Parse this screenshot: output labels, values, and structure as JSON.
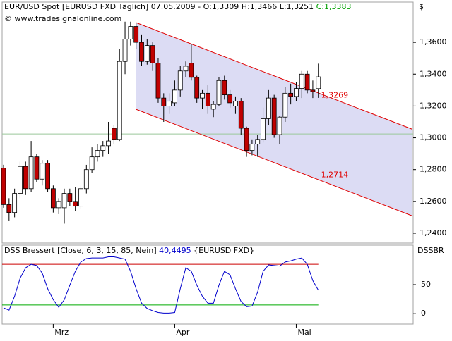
{
  "chart_data": [
    {
      "type": "candlestick",
      "title": "EUR/USD Spot [EURUSD FXD  Täglich] 07.05.2009 - O:1,3309 H:1,3466 L:1,3251",
      "title_close": "C:1,3383",
      "watermark": "© www.tradesignalonline.com",
      "axis_label": "$",
      "categories": [
        null,
        null,
        null,
        null,
        null,
        null,
        null,
        null,
        null,
        "Mrz",
        null,
        null,
        null,
        null,
        null,
        null,
        null,
        null,
        null,
        null,
        null,
        null,
        null,
        null,
        null,
        null,
        null,
        null,
        null,
        null,
        null,
        "Apr",
        null,
        null,
        null,
        null,
        null,
        null,
        null,
        null,
        null,
        null,
        null,
        null,
        null,
        null,
        null,
        null,
        null,
        null,
        null,
        null,
        null,
        "Mai",
        null,
        null,
        null,
        null
      ],
      "open": [
        1.281,
        1.258,
        1.253,
        1.265,
        1.282,
        1.268,
        1.288,
        1.274,
        1.284,
        1.268,
        1.256,
        1.256,
        1.265,
        1.26,
        1.257,
        1.268,
        1.28,
        1.288,
        1.292,
        1.295,
        1.306,
        1.299,
        1.348,
        1.362,
        1.37,
        1.36,
        1.348,
        1.358,
        1.347,
        1.325,
        1.32,
        1.322,
        1.33,
        1.342,
        1.347,
        1.338,
        1.325,
        1.328,
        1.318,
        1.321,
        1.336,
        1.327,
        1.32,
        1.323,
        1.306,
        1.292,
        1.296,
        1.299,
        1.312,
        1.325,
        1.302,
        1.313,
        1.328,
        1.326,
        1.331,
        1.34,
        1.33,
        1.3309
      ],
      "high": [
        1.283,
        1.262,
        1.268,
        1.285,
        1.285,
        1.298,
        1.29,
        1.286,
        1.286,
        1.27,
        1.262,
        1.268,
        1.268,
        1.269,
        1.27,
        1.283,
        1.294,
        1.296,
        1.298,
        1.31,
        1.308,
        1.356,
        1.373,
        1.373,
        1.372,
        1.365,
        1.362,
        1.36,
        1.35,
        1.328,
        1.328,
        1.336,
        1.345,
        1.348,
        1.359,
        1.339,
        1.33,
        1.333,
        1.323,
        1.338,
        1.339,
        1.33,
        1.326,
        1.325,
        1.307,
        1.299,
        1.302,
        1.319,
        1.33,
        1.327,
        1.314,
        1.332,
        1.334,
        1.335,
        1.342,
        1.342,
        1.336,
        1.3466
      ],
      "low": [
        1.256,
        1.248,
        1.25,
        1.262,
        1.264,
        1.266,
        1.272,
        1.27,
        1.266,
        1.253,
        1.252,
        1.246,
        1.257,
        1.254,
        1.255,
        1.265,
        1.278,
        1.285,
        1.288,
        1.29,
        1.296,
        1.298,
        1.34,
        1.358,
        1.356,
        1.345,
        1.346,
        1.342,
        1.322,
        1.31,
        1.315,
        1.32,
        1.326,
        1.338,
        1.336,
        1.322,
        1.318,
        1.315,
        1.313,
        1.32,
        1.324,
        1.319,
        1.315,
        1.302,
        1.288,
        1.289,
        1.288,
        1.297,
        1.308,
        1.3,
        1.296,
        1.31,
        1.321,
        1.323,
        1.325,
        1.328,
        1.325,
        1.3251
      ],
      "close": [
        1.258,
        1.253,
        1.265,
        1.282,
        1.268,
        1.288,
        1.274,
        1.284,
        1.268,
        1.256,
        1.26,
        1.265,
        1.26,
        1.257,
        1.268,
        1.28,
        1.288,
        1.292,
        1.295,
        1.298,
        1.299,
        1.348,
        1.362,
        1.37,
        1.36,
        1.348,
        1.358,
        1.347,
        1.325,
        1.32,
        1.323,
        1.33,
        1.342,
        1.345,
        1.338,
        1.325,
        1.328,
        1.32,
        1.321,
        1.336,
        1.327,
        1.322,
        1.323,
        1.306,
        1.292,
        1.296,
        1.299,
        1.312,
        1.325,
        1.302,
        1.313,
        1.328,
        1.326,
        1.331,
        1.34,
        1.33,
        1.329,
        1.3383
      ],
      "up_color": "#ffffff",
      "down_color": "#c00000",
      "ylim": [
        1.2338,
        1.3853
      ],
      "yticks": [
        {
          "value": 1.24,
          "label": "1,2400"
        },
        {
          "value": 1.26,
          "label": "1,2600"
        },
        {
          "value": 1.28,
          "label": "1,2800"
        },
        {
          "value": 1.3,
          "label": "1,3000"
        },
        {
          "value": 1.32,
          "label": "1,3200"
        },
        {
          "value": 1.34,
          "label": "1,3400"
        },
        {
          "value": 1.36,
          "label": "1,3600"
        }
      ],
      "channel": {
        "x": [
          24,
          74
        ],
        "upper": [
          1.3724,
          1.3054
        ],
        "lower": [
          1.3179,
          1.2509
        ],
        "color": "#e00000",
        "fill": "#dcdcf4",
        "upper_label": "1,3269",
        "lower_label": "1,2714"
      },
      "level": 1.3024,
      "level_color": "#9ac89a"
    },
    {
      "type": "line",
      "title": "DSS Bressert [Close, 6, 3, 15, 85, Nein]",
      "value_label": "40,4495",
      "symbol": "{EURUSD FXD}",
      "axis_label": "DSSBR",
      "color": "#0000cc",
      "values": [
        10,
        6,
        30,
        61,
        79,
        85,
        83,
        70,
        43,
        24,
        11,
        24,
        49,
        73,
        89,
        95,
        96,
        96,
        96,
        98,
        98,
        96,
        94,
        73,
        43,
        18,
        9,
        5,
        2,
        1,
        1,
        2,
        43,
        79,
        73,
        49,
        30,
        18,
        18,
        49,
        73,
        67,
        43,
        21,
        12,
        13,
        37,
        73,
        84,
        83,
        82,
        89,
        91,
        94,
        96,
        85,
        57,
        40.4495
      ],
      "ylim": [
        -18,
        118
      ],
      "yticks": [
        0,
        50
      ],
      "levels": [
        {
          "value": 85,
          "color": "#cc0000"
        },
        {
          "value": 15,
          "color": "#00aa00"
        }
      ]
    }
  ]
}
